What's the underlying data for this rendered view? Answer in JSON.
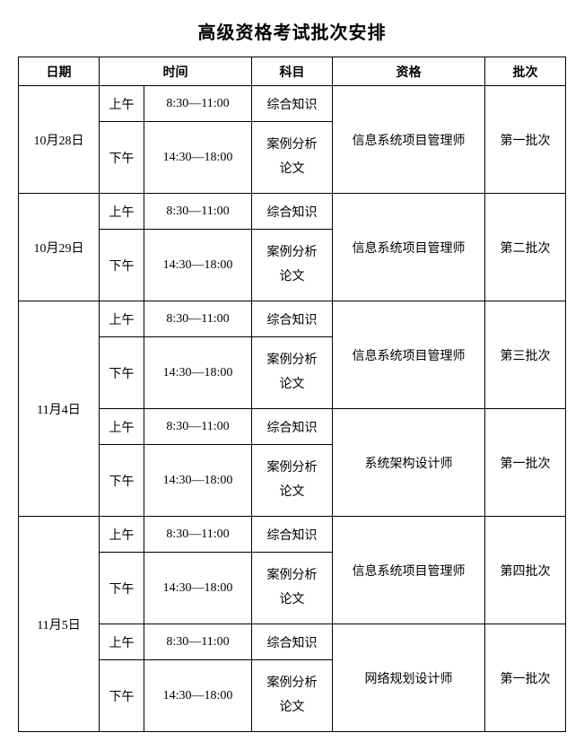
{
  "title": "高级资格考试批次安排",
  "headers": {
    "date": "日期",
    "time": "时间",
    "subject": "科目",
    "qualification": "资格",
    "batch": "批次"
  },
  "sessions": {
    "morning": "上午",
    "afternoon": "下午"
  },
  "times": {
    "morning": "8:30—11:00",
    "afternoon": "14:30—18:00"
  },
  "subjects": {
    "comprehensive": "综合知识",
    "case": "案例分析",
    "thesis": "论文"
  },
  "qualifications": {
    "ispm": "信息系统项目管理师",
    "arch": "系统架构设计师",
    "net": "网络规划设计师"
  },
  "dates": {
    "d1": "10月28日",
    "d2": "10月29日",
    "d3": "11月4日",
    "d4": "11月5日"
  },
  "batches": {
    "b1": "第一批次",
    "b2": "第二批次",
    "b3": "第三批次",
    "b4": "第四批次"
  },
  "styling": {
    "background_color": "#ffffff",
    "border_color": "#000000",
    "text_color": "#000000",
    "title_fontsize": 20,
    "cell_fontsize": 14,
    "font_family": "SimSun"
  }
}
